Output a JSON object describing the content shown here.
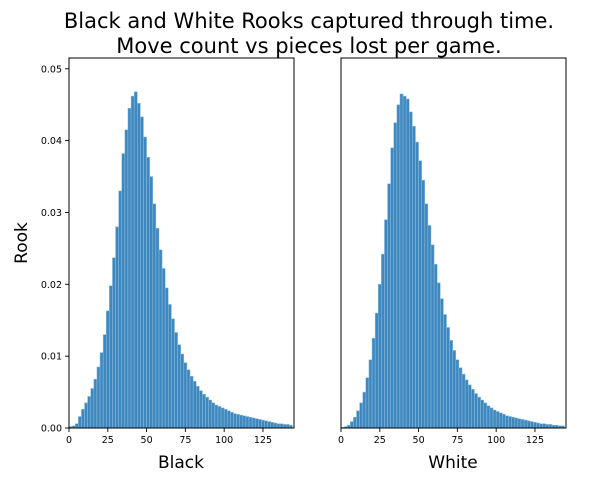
{
  "title_line1": "Black and White Rooks captured through time.",
  "title_line2": "Move count vs pieces lost per game.",
  "chart_data": {
    "type": "bar",
    "ylabel": "Rook",
    "ylim": [
      0,
      0.0515
    ],
    "xlim": [
      0,
      145
    ],
    "bin_width": 2,
    "y_ticks": [
      0.0,
      0.01,
      0.02,
      0.03,
      0.04,
      0.05
    ],
    "y_tick_labels": [
      "0.00",
      "0.01",
      "0.02",
      "0.03",
      "0.04",
      "0.05"
    ],
    "x_ticks": [
      0,
      25,
      50,
      75,
      100,
      125
    ],
    "x_tick_labels": [
      "0",
      "25",
      "50",
      "75",
      "100",
      "125"
    ],
    "bar_color": "#3f88bf",
    "panels": [
      {
        "xlabel": "Black",
        "bin_start": 0,
        "values": [
          0.0002,
          0.0003,
          0.0006,
          0.0016,
          0.0026,
          0.0035,
          0.0044,
          0.0055,
          0.0068,
          0.0085,
          0.0105,
          0.013,
          0.0163,
          0.0198,
          0.0237,
          0.028,
          0.033,
          0.0382,
          0.0415,
          0.0445,
          0.0462,
          0.0468,
          0.0452,
          0.0433,
          0.0405,
          0.0377,
          0.035,
          0.0312,
          0.0278,
          0.0248,
          0.0222,
          0.0195,
          0.0172,
          0.0152,
          0.0133,
          0.0116,
          0.0103,
          0.0091,
          0.0081,
          0.0072,
          0.0065,
          0.0058,
          0.0052,
          0.0047,
          0.0043,
          0.0039,
          0.0035,
          0.0032,
          0.003,
          0.0028,
          0.0026,
          0.0024,
          0.0022,
          0.002,
          0.0019,
          0.0018,
          0.0017,
          0.0016,
          0.0015,
          0.0014,
          0.0013,
          0.0012,
          0.0011,
          0.001,
          0.0009,
          0.0008,
          0.0007,
          0.0006,
          0.0006,
          0.0005,
          0.0005,
          0.0004
        ]
      },
      {
        "xlabel": "White",
        "bin_start": 0,
        "values": [
          0.0001,
          0.0002,
          0.0004,
          0.0009,
          0.0015,
          0.0024,
          0.0035,
          0.005,
          0.007,
          0.0095,
          0.0125,
          0.016,
          0.02,
          0.0242,
          0.029,
          0.034,
          0.039,
          0.0425,
          0.045,
          0.0465,
          0.0462,
          0.0458,
          0.044,
          0.042,
          0.0398,
          0.0372,
          0.0345,
          0.0312,
          0.0282,
          0.0255,
          0.0228,
          0.0202,
          0.018,
          0.0158,
          0.014,
          0.0122,
          0.0108,
          0.0095,
          0.0084,
          0.0075,
          0.0067,
          0.006,
          0.0054,
          0.0048,
          0.0043,
          0.0039,
          0.0035,
          0.0031,
          0.0028,
          0.0025,
          0.0023,
          0.0021,
          0.0019,
          0.0017,
          0.0016,
          0.0015,
          0.0014,
          0.0013,
          0.0012,
          0.0011,
          0.001,
          0.0009,
          0.0008,
          0.0007,
          0.0006,
          0.0006,
          0.0005,
          0.0005,
          0.0004,
          0.0004,
          0.0003,
          0.0003
        ]
      }
    ]
  }
}
